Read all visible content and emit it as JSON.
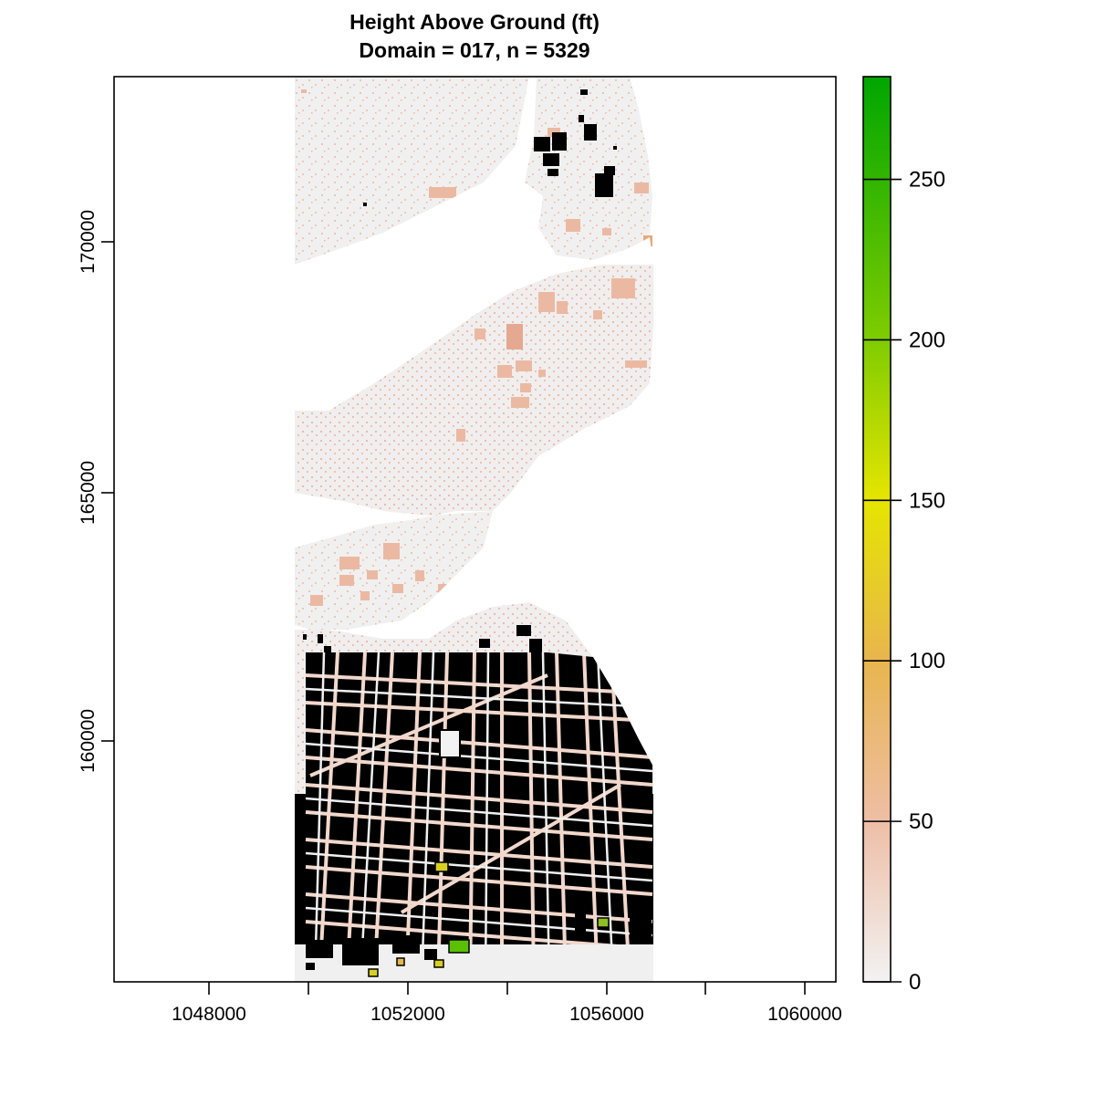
{
  "title": {
    "line1": "Height Above Ground (ft)",
    "line2": "Domain = 017, n = 5329"
  },
  "x_axis": {
    "ticks": [
      1048000,
      1052000,
      1056000,
      1060000
    ],
    "labels": [
      "1048000",
      "1052000",
      "1056000",
      "1060000"
    ]
  },
  "y_axis": {
    "ticks": [
      160000,
      165000,
      170000
    ],
    "labels": [
      "160000",
      "165000",
      "170000"
    ]
  },
  "colorbar": {
    "min": 0,
    "max": 282,
    "ticks": [
      0,
      50,
      100,
      150,
      200,
      250
    ],
    "labels": [
      "0",
      "50",
      "100",
      "150",
      "200",
      "250"
    ],
    "gradient": [
      {
        "value": 0,
        "color": "#F2F2F2"
      },
      {
        "value": 50,
        "color": "#EEBEA6"
      },
      {
        "value": 100,
        "color": "#E8B54E"
      },
      {
        "value": 150,
        "color": "#E6E500"
      },
      {
        "value": 200,
        "color": "#7FCC00"
      },
      {
        "value": 282,
        "color": "#00A600"
      }
    ]
  },
  "colors": {
    "ground": "#F0F0F0",
    "low_structure": "#EEC0AA",
    "building_outline": "#000000",
    "tall_building_yellow": "#D8D020",
    "tall_building_green": "#5AC000"
  }
}
